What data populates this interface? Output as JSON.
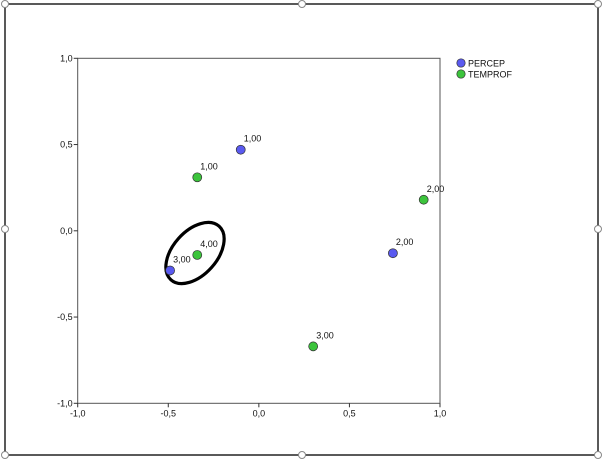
{
  "chart_data": {
    "type": "scatter",
    "title": "",
    "xlabel": "",
    "ylabel": "",
    "xlim": [
      -1.0,
      1.0
    ],
    "ylim": [
      -1.0,
      1.0
    ],
    "x_ticks": [
      "-1,0",
      "-0,5",
      "0,0",
      "0,5",
      "1,0"
    ],
    "y_ticks": [
      "1,0",
      "0,5",
      "0,0",
      "-0,5",
      "-1,0"
    ],
    "grid": false,
    "legend_position": "top-right",
    "series": [
      {
        "name": "PERCEP",
        "color": "#5a5af0",
        "points": [
          {
            "label": "1,00",
            "x": -0.1,
            "y": 0.47
          },
          {
            "label": "2,00",
            "x": 0.74,
            "y": -0.13
          },
          {
            "label": "3,00",
            "x": -0.49,
            "y": -0.23
          }
        ]
      },
      {
        "name": "TEMPROF",
        "color": "#3cc43c",
        "points": [
          {
            "label": "1,00",
            "x": -0.34,
            "y": 0.31
          },
          {
            "label": "2,00",
            "x": 0.91,
            "y": 0.18
          },
          {
            "label": "3,00",
            "x": 0.3,
            "y": -0.67
          },
          {
            "label": "4,00",
            "x": -0.34,
            "y": -0.14
          }
        ]
      }
    ],
    "annotation": "ellipse around PERCEP 3,00 and TEMPROF 4,00"
  }
}
